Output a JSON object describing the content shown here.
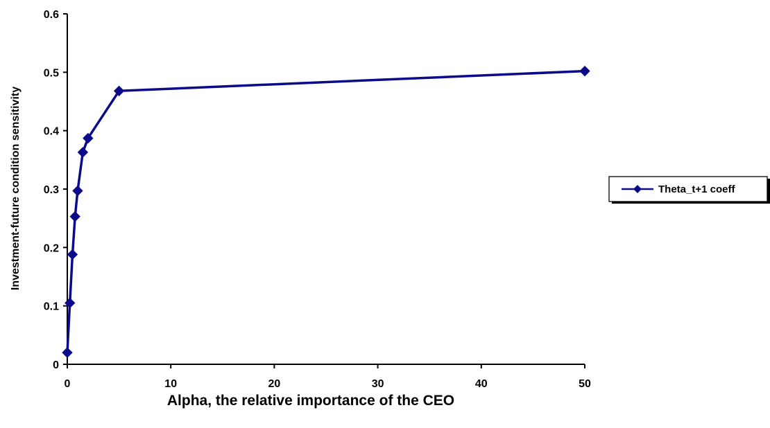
{
  "chart_data": {
    "type": "line",
    "title": "",
    "xlabel": "Alpha, the relative importance of the CEO",
    "ylabel": "Investment-future condition sensitivity",
    "xlim": [
      0,
      50
    ],
    "ylim": [
      0,
      0.6
    ],
    "xticks": [
      0,
      10,
      20,
      30,
      40,
      50
    ],
    "yticks": [
      0,
      0.1,
      0.2,
      0.3,
      0.4,
      0.5,
      0.6
    ],
    "grid": false,
    "legend_position": "right",
    "series": [
      {
        "name": "Theta_t+1 coeff",
        "color": "#0a0a8a",
        "marker": "diamond",
        "x": [
          0,
          0.25,
          0.5,
          0.75,
          1,
          1.5,
          2,
          5,
          50
        ],
        "y": [
          0.02,
          0.105,
          0.188,
          0.253,
          0.297,
          0.363,
          0.387,
          0.468,
          0.502
        ]
      }
    ]
  }
}
